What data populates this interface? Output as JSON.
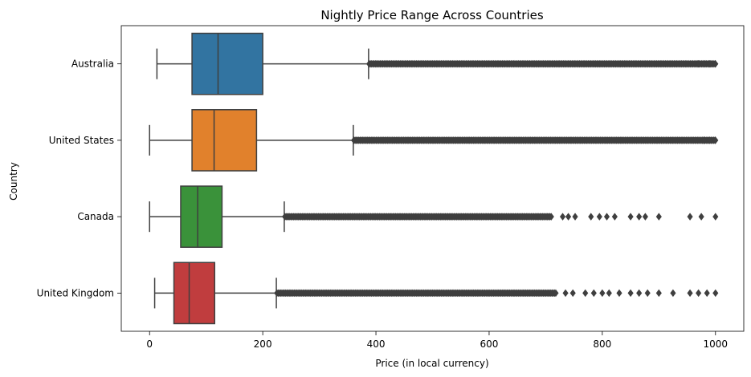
{
  "chart_data": {
    "type": "boxplot",
    "orientation": "horizontal",
    "title": "Nightly Price Range Across Countries",
    "xlabel": "Price (in local currency)",
    "ylabel": "Country",
    "xlim": [
      -50,
      1050
    ],
    "xticks": [
      0,
      200,
      400,
      600,
      800,
      1000
    ],
    "grid": false,
    "series": [
      {
        "name": "Australia",
        "color": "#3274a1",
        "whisker_low": 13,
        "q1": 75,
        "median": 121,
        "q3": 200,
        "whisker_high": 387,
        "outlier_dense_range": [
          388,
          1000
        ],
        "outlier_isolated": [
          970,
          980,
          990,
          1000
        ]
      },
      {
        "name": "United States",
        "color": "#e1812c",
        "whisker_low": 0,
        "q1": 75,
        "median": 114,
        "q3": 189,
        "whisker_high": 360,
        "outlier_dense_range": [
          361,
          1000
        ],
        "outlier_isolated": [
          980,
          990,
          1000
        ]
      },
      {
        "name": "Canada",
        "color": "#3a923a",
        "whisker_low": 0,
        "q1": 55,
        "median": 85,
        "q3": 128,
        "whisker_high": 238,
        "outlier_dense_range": [
          239,
          710
        ],
        "outlier_isolated": [
          730,
          740,
          752,
          780,
          795,
          808,
          822,
          850,
          865,
          876,
          900,
          955,
          975,
          1000
        ]
      },
      {
        "name": "United Kingdom",
        "color": "#c03d3e",
        "whisker_low": 9,
        "q1": 43,
        "median": 70,
        "q3": 115,
        "whisker_high": 224,
        "outlier_dense_range": [
          225,
          720
        ],
        "outlier_isolated": [
          735,
          748,
          770,
          785,
          800,
          812,
          830,
          850,
          865,
          880,
          900,
          925,
          955,
          970,
          985,
          1000
        ]
      }
    ]
  }
}
